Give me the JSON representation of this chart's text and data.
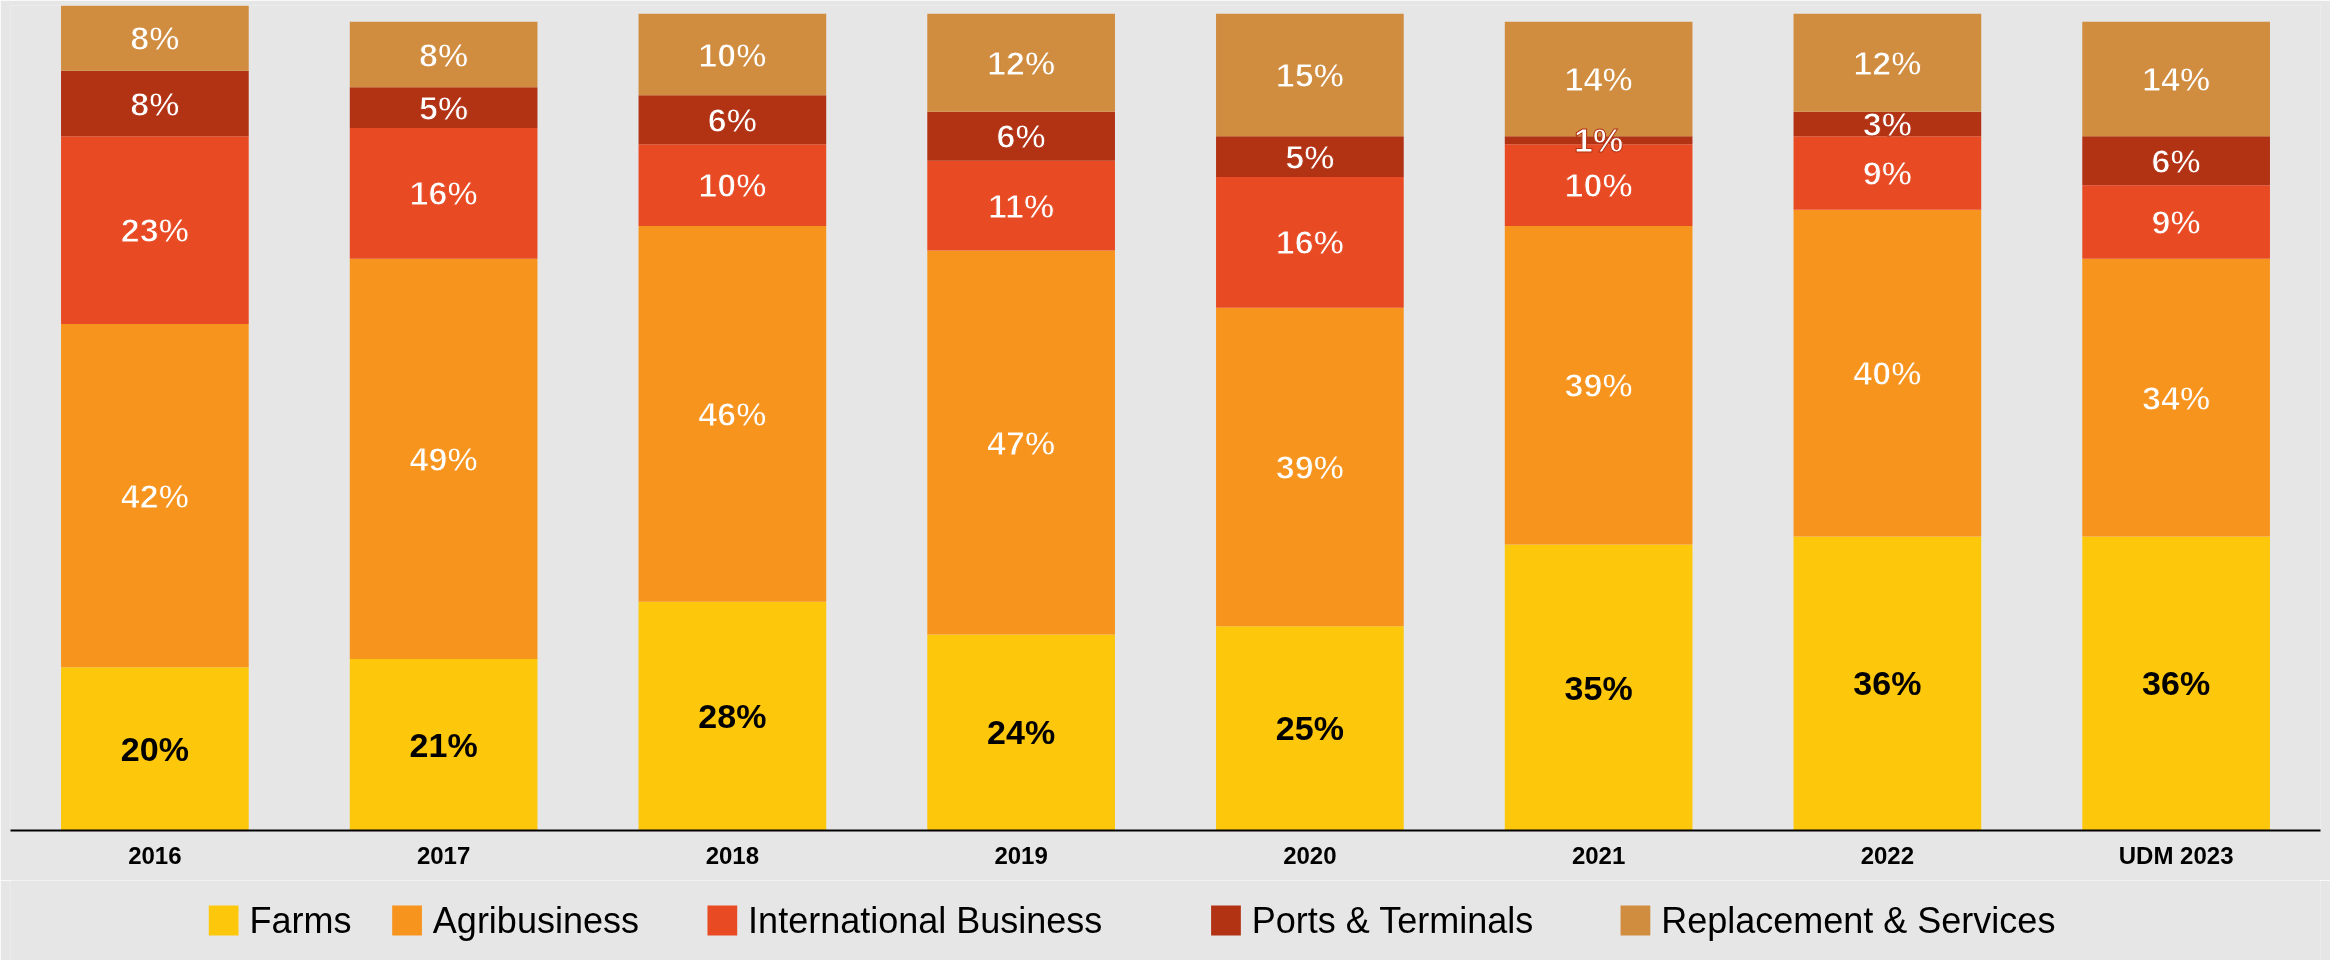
{
  "chart_data": {
    "type": "bar",
    "stacked": true,
    "legend": "bottom",
    "categories": [
      "2016",
      "2017",
      "2018",
      "2019",
      "2020",
      "2021",
      "2022",
      "UDM 2023"
    ],
    "series": [
      {
        "name": "Farms",
        "color": "#fdc70c",
        "values": [
          20,
          21,
          28,
          24,
          25,
          35,
          36,
          36
        ],
        "value_labels": [
          "20%",
          "21%",
          "28%",
          "24%",
          "25%",
          "35%",
          "36%",
          "36%"
        ]
      },
      {
        "name": "Agribusiness",
        "color": "#f7941e",
        "values": [
          42,
          49,
          46,
          47,
          39,
          39,
          40,
          34
        ],
        "value_labels": [
          "42%",
          "49%",
          "46%",
          "47%",
          "39%",
          "39%",
          "40%",
          "34%"
        ]
      },
      {
        "name": "International Business",
        "color": "#e84b24",
        "values": [
          23,
          16,
          10,
          11,
          16,
          10,
          9,
          9
        ],
        "value_labels": [
          "23%",
          "16%",
          "10%",
          "11%",
          "16%",
          "10%",
          "9%",
          "9%"
        ]
      },
      {
        "name": "Ports & Terminals",
        "color": "#b23214",
        "values": [
          8,
          5,
          6,
          6,
          5,
          1,
          3,
          6
        ],
        "value_labels": [
          "8%",
          "5%",
          "6%",
          "6%",
          "5%",
          "1%",
          "3%",
          "6%"
        ]
      },
      {
        "name": "Replacement & Services",
        "color": "#d08c3f",
        "values": [
          8,
          8,
          10,
          12,
          15,
          14,
          12,
          14
        ],
        "value_labels": [
          "8%",
          "8%",
          "10%",
          "12%",
          "15%",
          "14%",
          "12%",
          "14%"
        ]
      }
    ]
  }
}
